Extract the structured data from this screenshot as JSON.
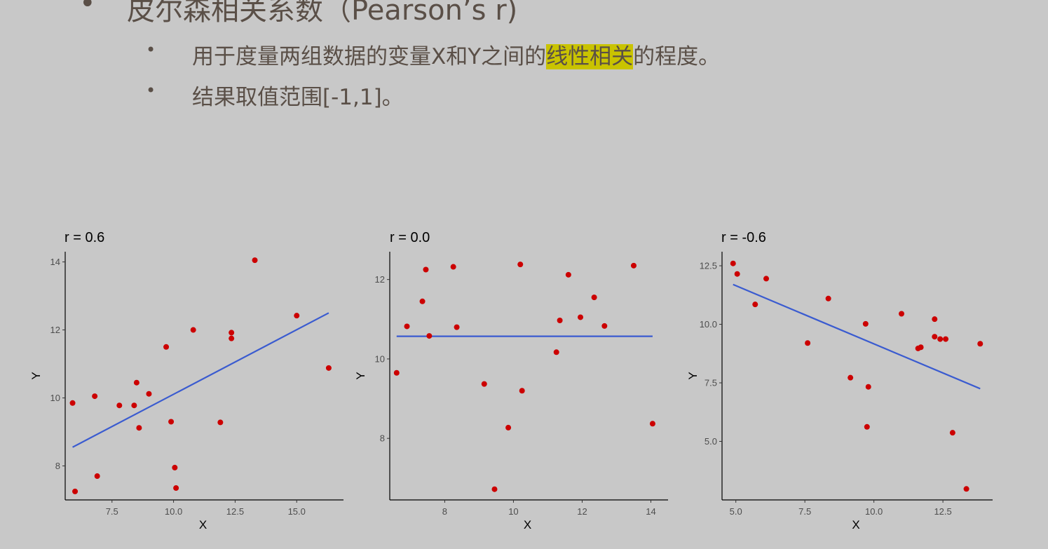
{
  "slide": {
    "heading": "皮尔森相关系数（Pearson’s r)",
    "bullet1_pre": "用于度量两组数据的变量X和Y之间的",
    "bullet1_hl": "线性相关",
    "bullet1_post": "的程度。",
    "bullet2": "结果取值范围[-1,1]。",
    "bullet_glyph": "•"
  },
  "colors": {
    "point": "#cc0000",
    "line": "#3a5bd0",
    "highlight": "#c9c300"
  },
  "chart_data": [
    {
      "type": "scatter",
      "title": "r = 0.6",
      "xlabel": "X",
      "ylabel": "Y",
      "xlim": [
        5.6,
        16.9
      ],
      "ylim": [
        7.0,
        14.3
      ],
      "xticks": [
        7.5,
        10.0,
        12.5,
        15.0
      ],
      "xticklabels": [
        "7.5",
        "10.0",
        "12.5",
        "15.0"
      ],
      "yticks": [
        8,
        10,
        12,
        14
      ],
      "yticklabels": [
        "8",
        "10",
        "12",
        "14"
      ],
      "points": [
        [
          5.9,
          9.85
        ],
        [
          6.0,
          7.25
        ],
        [
          6.8,
          10.05
        ],
        [
          6.9,
          7.7
        ],
        [
          7.8,
          9.78
        ],
        [
          8.4,
          9.78
        ],
        [
          8.5,
          10.45
        ],
        [
          8.6,
          9.12
        ],
        [
          9.0,
          10.12
        ],
        [
          9.7,
          11.5
        ],
        [
          9.9,
          9.3
        ],
        [
          10.05,
          7.95
        ],
        [
          10.1,
          7.35
        ],
        [
          10.8,
          12.0
        ],
        [
          11.9,
          9.28
        ],
        [
          12.35,
          11.75
        ],
        [
          12.35,
          11.92
        ],
        [
          13.3,
          14.05
        ],
        [
          15.0,
          12.42
        ],
        [
          16.3,
          10.88
        ]
      ],
      "trend": [
        [
          5.9,
          8.55
        ],
        [
          16.3,
          12.5
        ]
      ],
      "grid": false,
      "legend": "none"
    },
    {
      "type": "scatter",
      "title": "r = 0.0",
      "xlabel": "X",
      "ylabel": "Y",
      "xlim": [
        6.4,
        14.5
      ],
      "ylim": [
        6.45,
        12.7
      ],
      "xticks": [
        8,
        10,
        12,
        14
      ],
      "xticklabels": [
        "8",
        "10",
        "12",
        "14"
      ],
      "yticks": [
        8,
        10,
        12
      ],
      "yticklabels": [
        "8",
        "10",
        "12"
      ],
      "points": [
        [
          6.6,
          9.65
        ],
        [
          6.9,
          10.82
        ],
        [
          7.35,
          11.45
        ],
        [
          7.45,
          12.25
        ],
        [
          7.55,
          10.58
        ],
        [
          8.25,
          12.32
        ],
        [
          8.35,
          10.8
        ],
        [
          9.15,
          9.37
        ],
        [
          9.45,
          6.72
        ],
        [
          9.85,
          8.27
        ],
        [
          10.2,
          12.38
        ],
        [
          10.25,
          9.2
        ],
        [
          11.25,
          10.17
        ],
        [
          11.35,
          10.97
        ],
        [
          11.6,
          12.12
        ],
        [
          11.95,
          11.05
        ],
        [
          12.35,
          11.55
        ],
        [
          12.65,
          10.83
        ],
        [
          13.5,
          12.35
        ],
        [
          14.05,
          8.37
        ]
      ],
      "trend": [
        [
          6.6,
          10.57
        ],
        [
          14.05,
          10.57
        ]
      ],
      "grid": false,
      "legend": "none"
    },
    {
      "type": "scatter",
      "title": "r = -0.6",
      "xlabel": "X",
      "ylabel": "Y",
      "xlim": [
        4.5,
        14.3
      ],
      "ylim": [
        2.5,
        13.1
      ],
      "xticks": [
        5.0,
        7.5,
        10.0,
        12.5
      ],
      "xticklabels": [
        "5.0",
        "7.5",
        "10.0",
        "12.5"
      ],
      "yticks": [
        5.0,
        7.5,
        10.0,
        12.5
      ],
      "yticklabels": [
        "5.0",
        "7.5",
        "10.0",
        "12.5"
      ],
      "points": [
        [
          4.9,
          12.6
        ],
        [
          5.05,
          12.15
        ],
        [
          5.7,
          10.85
        ],
        [
          6.1,
          11.95
        ],
        [
          7.6,
          9.2
        ],
        [
          8.35,
          11.1
        ],
        [
          9.15,
          7.72
        ],
        [
          9.7,
          10.02
        ],
        [
          9.75,
          5.62
        ],
        [
          9.8,
          7.33
        ],
        [
          11.0,
          10.45
        ],
        [
          11.6,
          8.97
        ],
        [
          11.7,
          9.02
        ],
        [
          12.2,
          10.22
        ],
        [
          12.2,
          9.47
        ],
        [
          12.4,
          9.37
        ],
        [
          12.6,
          9.37
        ],
        [
          12.85,
          5.37
        ],
        [
          13.35,
          2.97
        ],
        [
          13.85,
          9.17
        ]
      ],
      "trend": [
        [
          4.9,
          11.7
        ],
        [
          13.85,
          7.25
        ]
      ],
      "grid": false,
      "legend": "none"
    }
  ]
}
